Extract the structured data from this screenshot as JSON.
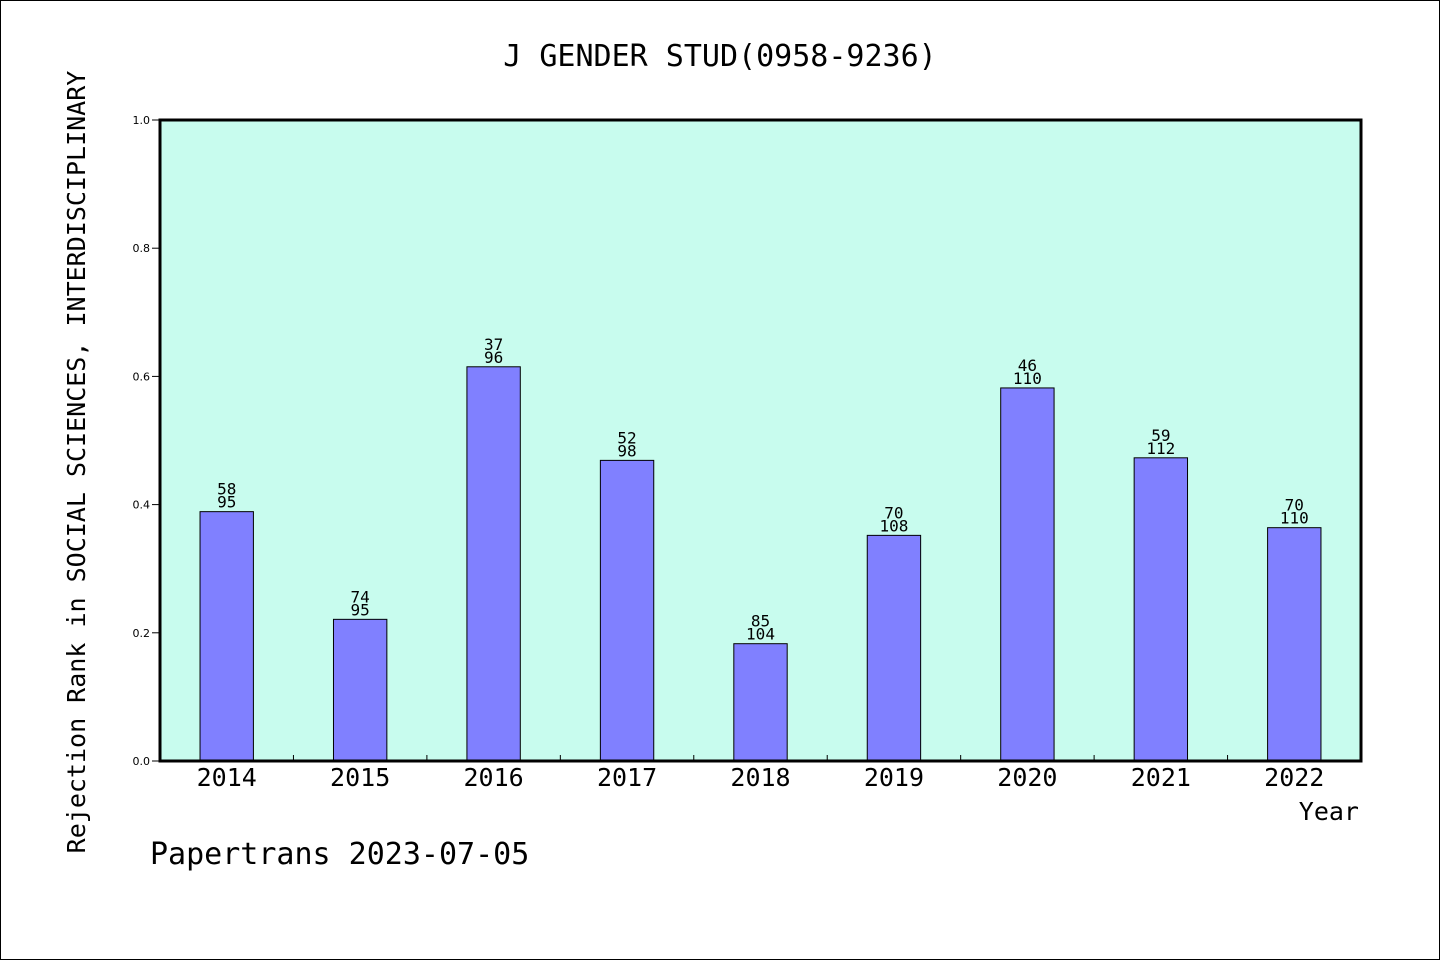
{
  "chart_data": {
    "type": "bar",
    "title": "J GENDER STUD(0958-9236)",
    "xlabel": "Year",
    "ylabel": "Rejection Rank in SOCIAL SCIENCES, INTERDISCIPLINARY",
    "ylim": [
      0,
      1.0
    ],
    "yticks": [
      "0.0",
      "0.2",
      "0.4",
      "0.6",
      "0.8",
      "1.0"
    ],
    "grid": false,
    "categories": [
      "2014",
      "2015",
      "2016",
      "2017",
      "2018",
      "2019",
      "2020",
      "2021",
      "2022"
    ],
    "values": [
      0.389,
      0.221,
      0.615,
      0.469,
      0.183,
      0.352,
      0.582,
      0.473,
      0.364
    ],
    "rank_labels": [
      "58",
      "74",
      "37",
      "52",
      "85",
      "70",
      "46",
      "59",
      "70"
    ],
    "total_labels": [
      "95",
      "95",
      "96",
      "98",
      "104",
      "108",
      "110",
      "112",
      "110"
    ],
    "colors": {
      "plot_background": "#c8fcee",
      "bar_fill": "#8080ff",
      "bar_stroke": "#000000"
    }
  },
  "footer": {
    "credit": "Papertrans 2023-07-05"
  }
}
